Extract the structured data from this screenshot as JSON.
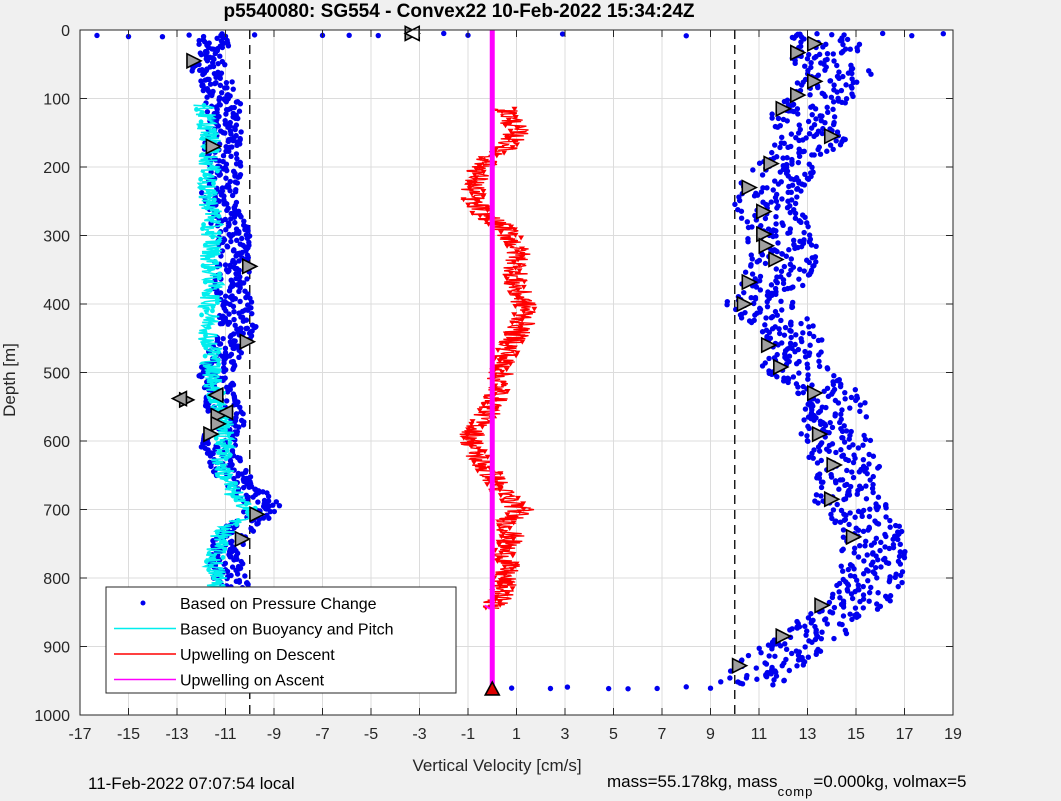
{
  "colors": {
    "figure_bg": "#f0f0f0",
    "axes_bg": "#ffffff",
    "grid": "#dcdcdc",
    "pressure": "#0000ee",
    "buoyancy": "#00eeee",
    "upwell_descent": "#ff0000",
    "upwell_ascent": "#ff00ff",
    "marker_fill": "#a0a0a0",
    "apogee_marker": "#dd0000"
  },
  "footer": {
    "local_time": "11-Feb-2022 07:07:54 local",
    "mass_text": "mass=55.178kg, mass",
    "mass_sub": "comp",
    "mass_rest": "=0.000kg, volmax=5"
  },
  "chart_data": {
    "type": "scatter",
    "title": "p5540080: SG554 - Convex22 10-Feb-2022 15:34:24Z",
    "xlabel": "Vertical Velocity [cm/s]",
    "ylabel": "Depth [m]",
    "xlim": [
      -17,
      19
    ],
    "ylim": [
      0,
      1000
    ],
    "y_reversed": true,
    "grid": true,
    "x_ticks": [
      -17,
      -15,
      -13,
      -11,
      -9,
      -7,
      -5,
      -3,
      -1,
      1,
      3,
      5,
      7,
      9,
      11,
      13,
      15,
      17,
      19
    ],
    "y_ticks": [
      0,
      100,
      200,
      300,
      400,
      500,
      600,
      700,
      800,
      900,
      1000
    ],
    "reference_lines_x": [
      -10,
      10
    ],
    "legend_position": "bottom-left",
    "series": [
      {
        "name": "Based on Pressure Change",
        "kind": "points",
        "profiles": [
          {
            "depth": [
              5,
              20,
              35,
              50,
              70,
              90,
              110,
              130,
              150,
              170,
              190,
              210,
              230,
              250,
              270,
              290,
              310,
              330,
              350,
              370,
              390,
              410,
              430,
              450,
              470,
              490,
              510,
              530,
              550,
              570,
              590,
              610,
              630,
              650,
              670,
              690,
              700,
              710,
              720,
              740,
              760,
              780,
              800,
              820,
              840,
              860,
              880,
              900,
              920,
              940,
              955
            ],
            "x": [
              -11.6,
              -11.8,
              -11.9,
              -12.0,
              -11.7,
              -11.5,
              -11.3,
              -11.2,
              -11.3,
              -11.4,
              -11.2,
              -11.3,
              -11.5,
              -11.4,
              -11.2,
              -11.0,
              -10.9,
              -11.0,
              -10.8,
              -11.0,
              -10.9,
              -10.8,
              -10.7,
              -10.9,
              -11.2,
              -11.5,
              -11.6,
              -11.6,
              -11.3,
              -11.0,
              -11.4,
              -11.5,
              -11.3,
              -11.0,
              -10.4,
              -9.8,
              -9.6,
              -10.0,
              -10.6,
              -11.0,
              -11.3,
              -11.2,
              -11.0,
              -11.0,
              -10.9,
              -10.9,
              -11.2,
              -11.8,
              -12.3,
              -12.7,
              -12.9
            ]
          },
          {
            "depth": [
              5,
              20,
              40,
              60,
              80,
              100,
              120,
              140,
              160,
              180,
              200,
              220,
              240,
              260,
              280,
              300,
              320,
              340,
              360,
              380,
              400,
              420,
              440,
              460,
              480,
              500,
              520,
              540,
              560,
              580,
              600,
              620,
              640,
              660,
              680,
              700,
              720,
              740,
              760,
              780,
              800,
              820,
              840,
              860,
              880,
              900,
              920,
              940,
              955
            ],
            "x": [
              12.9,
              13.4,
              13.2,
              13.9,
              13.5,
              13.1,
              12.3,
              12.4,
              12.8,
              12.2,
              11.6,
              11.2,
              10.9,
              10.9,
              11.3,
              11.4,
              11.6,
              11.6,
              11.3,
              10.8,
              10.6,
              11.2,
              11.9,
              11.8,
              11.8,
              12.4,
              13.1,
              13.6,
              13.8,
              13.5,
              13.8,
              14.0,
              14.3,
              14.0,
              14.1,
              14.6,
              15.0,
              15.3,
              15.2,
              15.3,
              15.3,
              15.0,
              14.4,
              13.6,
              12.9,
              12.0,
              11.2,
              10.6,
              10.3
            ]
          }
        ],
        "surface_depth": 5,
        "surface_x": [
          -16.3,
          -15.0,
          -13.6,
          -12.5,
          -11.0,
          -9.8,
          -7.0,
          -5.9,
          -4.7,
          -3.3,
          -2.0,
          -1.0,
          2.9,
          8.0,
          12.6,
          14.0,
          16.1,
          17.3,
          18.6
        ],
        "bottom_depth": 962,
        "bottom_x": [
          -6.0,
          -5.2,
          -3.4,
          -2.4,
          0.8,
          2.4,
          3.1,
          4.8,
          5.6,
          6.8,
          8.0,
          9.0
        ]
      },
      {
        "name": "Based on Buoyancy and Pitch",
        "kind": "line",
        "depth": [
          110,
          130,
          150,
          170,
          190,
          210,
          230,
          250,
          270,
          290,
          310,
          330,
          350,
          370,
          390,
          410,
          430,
          450,
          470,
          490,
          510,
          530,
          550,
          570,
          590,
          610,
          630,
          650,
          670,
          690,
          700,
          710,
          720,
          740,
          760,
          780,
          800,
          820
        ],
        "x": [
          -11.9,
          -11.8,
          -11.7,
          -11.6,
          -11.7,
          -11.6,
          -11.8,
          -11.7,
          -11.5,
          -11.6,
          -11.5,
          -11.6,
          -11.6,
          -11.5,
          -11.6,
          -11.7,
          -11.6,
          -11.7,
          -11.5,
          -11.6,
          -11.5,
          -11.4,
          -11.3,
          -11.0,
          -11.1,
          -11.0,
          -11.2,
          -11.0,
          -10.8,
          -10.4,
          -9.8,
          -9.9,
          -10.8,
          -11.2,
          -11.4,
          -11.5,
          -11.3,
          -11.4
        ]
      },
      {
        "name": "Upwelling on Descent",
        "kind": "line",
        "depth": [
          115,
          130,
          150,
          170,
          190,
          210,
          230,
          250,
          270,
          290,
          310,
          330,
          350,
          370,
          390,
          410,
          430,
          450,
          470,
          490,
          510,
          530,
          550,
          570,
          590,
          610,
          630,
          650,
          670,
          690,
          700,
          710,
          720,
          740,
          760,
          780,
          800,
          820,
          835,
          845
        ],
        "x": [
          0.5,
          0.8,
          1.0,
          0.6,
          -0.2,
          -0.6,
          -0.8,
          -0.8,
          -0.3,
          0.5,
          0.9,
          1.1,
          1.0,
          0.9,
          1.2,
          1.4,
          1.2,
          0.9,
          0.6,
          0.4,
          0.3,
          0.2,
          0.0,
          -0.4,
          -0.8,
          -0.8,
          -0.5,
          0.0,
          0.3,
          0.8,
          1.2,
          0.9,
          0.6,
          0.8,
          0.5,
          0.6,
          0.5,
          0.4,
          0.2,
          0.0
        ]
      },
      {
        "name": "Upwelling on Ascent",
        "kind": "vline",
        "x": 0.0,
        "depth": [
          0,
          962
        ]
      }
    ],
    "turn_markers": {
      "descent_left": [
        [
          -12.3,
          45
        ],
        [
          -11.5,
          170
        ],
        [
          -10.0,
          345
        ],
        [
          -10.1,
          455
        ],
        [
          -12.6,
          540
        ],
        [
          -11.3,
          563
        ],
        [
          -11.3,
          575
        ],
        [
          -11.6,
          590
        ],
        [
          -9.7,
          707
        ],
        [
          -10.3,
          743
        ],
        [
          -3.3,
          5
        ]
      ],
      "ascent_right": [
        [
          13.3,
          20
        ],
        [
          12.6,
          33
        ],
        [
          13.3,
          75
        ],
        [
          12.6,
          95
        ],
        [
          12.0,
          115
        ],
        [
          14.0,
          155
        ],
        [
          11.5,
          195
        ],
        [
          10.6,
          230
        ],
        [
          11.2,
          265
        ],
        [
          11.2,
          298
        ],
        [
          11.3,
          315
        ],
        [
          11.7,
          335
        ],
        [
          10.6,
          368
        ],
        [
          10.4,
          400
        ],
        [
          11.4,
          460
        ],
        [
          11.9,
          492
        ],
        [
          13.3,
          530
        ],
        [
          13.5,
          590
        ],
        [
          14.1,
          635
        ],
        [
          14.0,
          685
        ],
        [
          14.9,
          740
        ],
        [
          13.6,
          840
        ],
        [
          12.0,
          885
        ],
        [
          10.2,
          928
        ]
      ],
      "descent_open_left": [
        [
          -12.9,
          538
        ],
        [
          -11.4,
          533
        ],
        [
          -11.0,
          558
        ]
      ]
    },
    "apogee_markers": [
      [
        -12.9,
        955
      ],
      [
        0.0,
        962
      ]
    ]
  }
}
